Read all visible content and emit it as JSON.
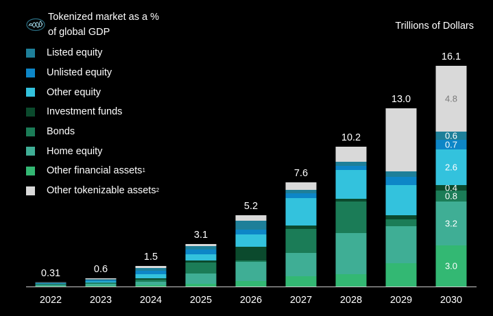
{
  "units_label": "Trillions of Dollars",
  "legend": {
    "header_line1": "Tokenized market  as a %",
    "header_line2": "of global GDP",
    "header_icon": "wave-line-icon",
    "items": [
      {
        "label": "Listed equity",
        "sup": "",
        "color": "#1e7f99"
      },
      {
        "label": "Unlisted equity",
        "sup": "",
        "color": "#0d86c7"
      },
      {
        "label": "Other equity",
        "sup": "",
        "color": "#33c2dd"
      },
      {
        "label": "Investment funds",
        "sup": "",
        "color": "#0b4a2d"
      },
      {
        "label": "Bonds",
        "sup": "",
        "color": "#1b7c57"
      },
      {
        "label": "Home equity",
        "sup": "",
        "color": "#3fae95"
      },
      {
        "label": "Other financial assets",
        "sup": "1",
        "color": "#33b873"
      },
      {
        "label": "Other tokenizable assets",
        "sup": "2",
        "color": "#d9d9d9"
      }
    ]
  },
  "chart_data": {
    "type": "bar",
    "stacked": true,
    "categories": [
      "2022",
      "2023",
      "2024",
      "2025",
      "2026",
      "2027",
      "2028",
      "2029",
      "2030"
    ],
    "totals": [
      "0.31",
      "0.6",
      "1.5",
      "3.1",
      "5.2",
      "7.6",
      "10.2",
      "13.0",
      "16.1"
    ],
    "series": [
      {
        "name": "Other financial assets",
        "color": "#33b873",
        "values": [
          0.03,
          0.05,
          0.1,
          0.2,
          0.4,
          0.75,
          0.9,
          1.7,
          3.0
        ],
        "labels": [
          "",
          "",
          "",
          "",
          "",
          "",
          "",
          "",
          "3.0"
        ],
        "label_color": "#ffffff"
      },
      {
        "name": "Home equity",
        "color": "#3fae95",
        "values": [
          0.1,
          0.15,
          0.25,
          0.75,
          1.4,
          1.7,
          3.0,
          2.7,
          3.2
        ],
        "labels": [
          "",
          "",
          "",
          "",
          "",
          "",
          "",
          "",
          "3.2"
        ],
        "label_color": "#ffffff"
      },
      {
        "name": "Bonds",
        "color": "#1b7c57",
        "values": [
          0.03,
          0.05,
          0.15,
          0.8,
          0.1,
          1.75,
          2.3,
          0.5,
          0.8
        ],
        "labels": [
          "",
          "",
          "",
          "",
          "",
          "",
          "",
          "",
          "0.8"
        ],
        "label_color": "#ffffff"
      },
      {
        "name": "Investment funds",
        "color": "#0b4a2d",
        "values": [
          0.02,
          0.03,
          0.1,
          0.15,
          1.0,
          0.25,
          0.2,
          0.3,
          0.4
        ],
        "labels": [
          "",
          "",
          "",
          "",
          "",
          "",
          "",
          "",
          "0.4"
        ],
        "label_color": "#ffffff"
      },
      {
        "name": "Other equity",
        "color": "#33c2dd",
        "values": [
          0.05,
          0.1,
          0.3,
          0.45,
          0.9,
          2.0,
          2.1,
          2.2,
          2.6
        ],
        "labels": [
          "",
          "",
          "",
          "",
          "",
          "",
          "",
          "",
          "2.6"
        ],
        "label_color": "#ffffff"
      },
      {
        "name": "Unlisted equity",
        "color": "#0d86c7",
        "values": [
          0.03,
          0.08,
          0.25,
          0.35,
          0.35,
          0.35,
          0.3,
          0.6,
          0.7
        ],
        "labels": [
          "",
          "",
          "",
          "",
          "",
          "",
          "",
          "",
          "0.7"
        ],
        "label_color": "#ffffff"
      },
      {
        "name": "Listed equity",
        "color": "#1e7f99",
        "values": [
          0.03,
          0.07,
          0.2,
          0.25,
          0.65,
          0.25,
          0.3,
          0.4,
          0.6
        ],
        "labels": [
          "",
          "",
          "",
          "",
          "",
          "",
          "",
          "",
          "0.6"
        ],
        "label_color": "#ffffff"
      },
      {
        "name": "Other tokenizable assets",
        "color": "#d9d9d9",
        "values": [
          0.02,
          0.07,
          0.15,
          0.15,
          0.4,
          0.55,
          1.1,
          4.6,
          4.8
        ],
        "labels": [
          "",
          "",
          "",
          "",
          "",
          "",
          "",
          "",
          "4.8"
        ],
        "label_color": "#7a7a7a"
      }
    ],
    "ylim": [
      0,
      16.1
    ],
    "grid": false,
    "legend_position": "top-left",
    "xlabel": "",
    "ylabel": ""
  }
}
